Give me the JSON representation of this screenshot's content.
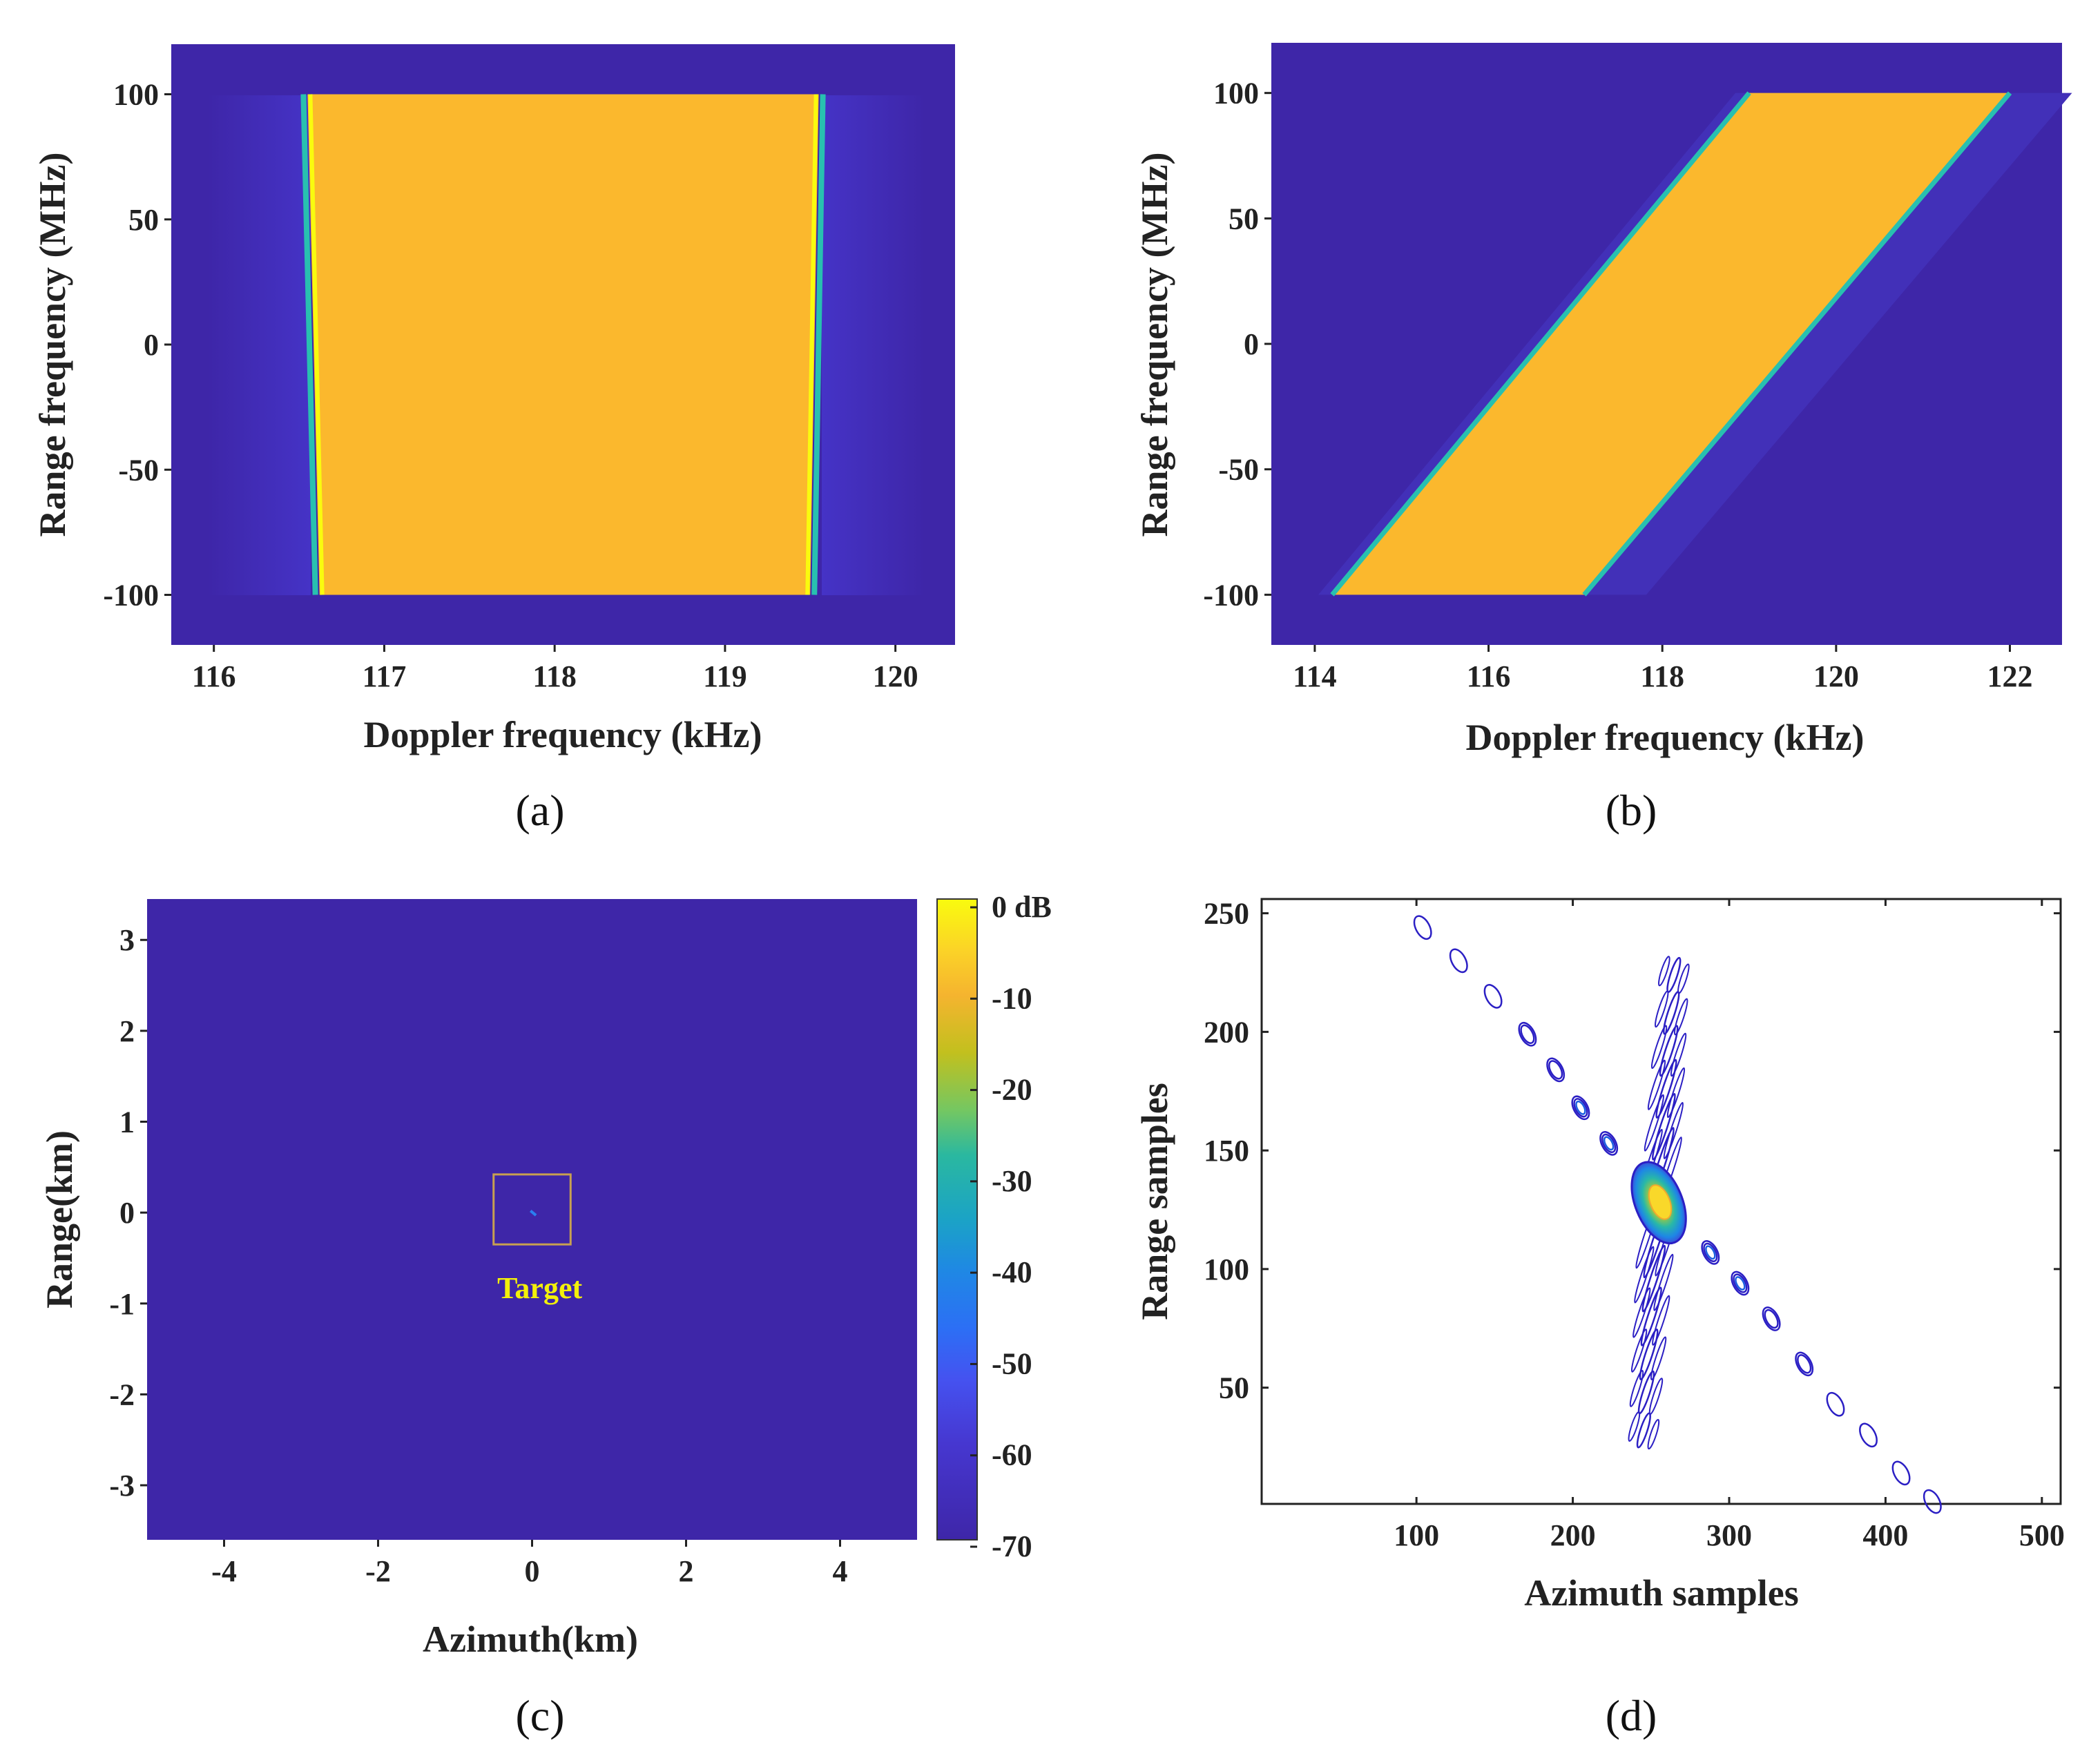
{
  "colors": {
    "background": "#3e26a8",
    "band": "#fbb82d",
    "edge_cyan": "#28c0b0",
    "edge_yellow": "#f9fb0e",
    "box": "#c8a050",
    "target_text": "#f3f00a",
    "contour_outer": "#2b1fc4"
  },
  "chart_data": [
    {
      "id": "a",
      "type": "heatmap",
      "caption": "(a)",
      "xlabel": "Doppler frequency (kHz)",
      "ylabel": "Range frequency (MHz)",
      "xlim": [
        115.75,
        120.35
      ],
      "ylim": [
        -120,
        120
      ],
      "xticks": [
        116,
        117,
        118,
        119,
        120
      ],
      "xtick_labels": [
        "116",
        "117",
        "118",
        "119",
        "120"
      ],
      "yticks": [
        100,
        50,
        0,
        -50,
        -100
      ],
      "ytick_labels": [
        "100",
        "50",
        "0",
        "-50",
        "-100"
      ],
      "band": {
        "freq_range": [
          -100,
          100
        ],
        "left_edge": [
          [
            116.55,
            100
          ],
          [
            116.62,
            -100
          ]
        ],
        "right_edge": [
          [
            119.55,
            100
          ],
          [
            119.5,
            -100
          ]
        ]
      }
    },
    {
      "id": "b",
      "type": "heatmap",
      "caption": "(b)",
      "xlabel": "Doppler frequency (kHz)",
      "ylabel": "Range frequency (MHz)",
      "xlim": [
        113.5,
        122.6
      ],
      "ylim": [
        -120,
        120
      ],
      "xticks": [
        114,
        116,
        118,
        120,
        122
      ],
      "xtick_labels": [
        "114",
        "116",
        "118",
        "120",
        "122"
      ],
      "yticks": [
        100,
        50,
        0,
        -50,
        -100
      ],
      "ytick_labels": [
        "100",
        "50",
        "0",
        "-50",
        "-100"
      ],
      "band": {
        "freq_range": [
          -100,
          100
        ],
        "left_edge": [
          [
            114.2,
            -100
          ],
          [
            119.0,
            100
          ]
        ],
        "right_edge": [
          [
            117.1,
            -100
          ],
          [
            122.0,
            100
          ]
        ]
      }
    },
    {
      "id": "c",
      "type": "heatmap",
      "caption": "(c)",
      "xlabel": "Azimuth(km)",
      "ylabel": "Range(km)",
      "xlim": [
        -5,
        5
      ],
      "ylim": [
        -3.6,
        3.45
      ],
      "xticks": [
        -4,
        -2,
        0,
        2,
        4
      ],
      "xtick_labels": [
        "-4",
        "-2",
        "0",
        "2",
        "4"
      ],
      "yticks": [
        3,
        2,
        1,
        0,
        -1,
        -2,
        -3
      ],
      "ytick_labels": [
        "3",
        "2",
        "1",
        "0",
        "-1",
        "-2",
        "-3"
      ],
      "target_label": "Target",
      "target_box": [
        -0.5,
        0.5,
        -0.35,
        0.42
      ],
      "colorbar": {
        "range": [
          -70,
          0
        ],
        "ticks": [
          0,
          -10,
          -20,
          -30,
          -40,
          -50,
          -60,
          -70
        ],
        "tick_labels": [
          "0 dB",
          "-10",
          "-20",
          "-30",
          "-40",
          "-50",
          "-60",
          "-70"
        ]
      }
    },
    {
      "id": "d",
      "type": "contour",
      "caption": "(d)",
      "xlabel": "Azimuth samples",
      "ylabel": "Range samples",
      "xlim": [
        1,
        512
      ],
      "ylim": [
        1,
        256
      ],
      "xticks": [
        100,
        200,
        300,
        400,
        500
      ],
      "xtick_labels": [
        "100",
        "200",
        "300",
        "400",
        "500"
      ],
      "yticks": [
        250,
        200,
        150,
        100,
        50
      ],
      "ytick_labels": [
        "250",
        "200",
        "150",
        "100",
        "50"
      ],
      "peak": [
        255,
        128
      ]
    }
  ]
}
